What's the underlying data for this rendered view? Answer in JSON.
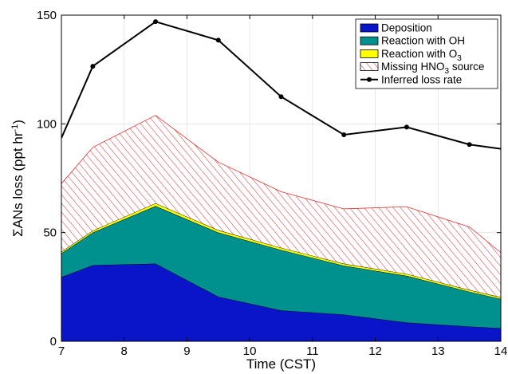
{
  "chart_data": {
    "type": "area",
    "xlabel": "Time (CST)",
    "ylabel": {
      "main": "ΣANs loss (ppt hr",
      "sup": "-1",
      "close": ")"
    },
    "xlim": [
      7,
      14
    ],
    "ylim": [
      0,
      150
    ],
    "xticks": [
      "7",
      "8",
      "9",
      "10",
      "11",
      "12",
      "13",
      "14"
    ],
    "yticks": [
      "0",
      "50",
      "100",
      "150"
    ],
    "grid": true,
    "legend_position": "top-right",
    "stacked_series": [
      {
        "name": "Deposition",
        "color": "#0a14c8",
        "x": [
          7,
          7.5,
          8.5,
          9.5,
          10.5,
          11.5,
          12.5,
          13.5,
          14
        ],
        "values": [
          29.5,
          35,
          35.7,
          20.5,
          14.2,
          12.3,
          8.6,
          6.8,
          6
        ]
      },
      {
        "name": "Reaction with OH",
        "color": "#00918f",
        "x": [
          7,
          7.5,
          8.5,
          9.5,
          10.5,
          11.5,
          12.5,
          13.5,
          14
        ],
        "values": [
          11,
          15,
          26.5,
          29.5,
          27.8,
          22.5,
          21.5,
          16,
          13.5
        ]
      },
      {
        "name": {
          "main": "Reaction with O",
          "sub": "3"
        },
        "color": "#ffff00",
        "x": [
          7,
          7.5,
          8.5,
          9.5,
          10.5,
          11.5,
          12.5,
          13.5,
          14
        ],
        "values": [
          0.7,
          0.9,
          1.3,
          1.1,
          1,
          0.9,
          0.9,
          0.8,
          0.8
        ]
      },
      {
        "name": {
          "main": "Missing HNO",
          "sub": "3",
          "rest": " source"
        },
        "color": "#d93030",
        "pattern": "hatch",
        "x": [
          7,
          7.5,
          8.5,
          9.5,
          10.5,
          11.5,
          12.5,
          13.5,
          14
        ],
        "values": [
          31.3,
          38.3,
          40.4,
          31.3,
          25.8,
          25.2,
          30.9,
          29,
          20.5
        ]
      }
    ],
    "line_series": {
      "name": "Inferred loss rate",
      "color": "#000000",
      "x": [
        7,
        7.5,
        8.5,
        9.5,
        10.5,
        11.5,
        12.5,
        13.5,
        14
      ],
      "values": [
        93.5,
        126.5,
        147,
        138.5,
        112.5,
        95,
        98.5,
        90.5,
        88.5
      ]
    }
  }
}
